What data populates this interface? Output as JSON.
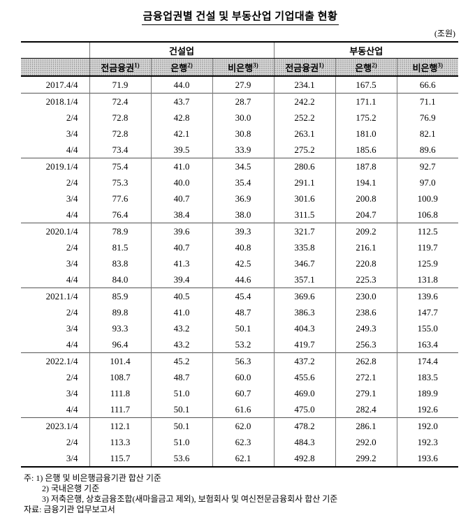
{
  "title": "금융업권별 건설 및 부동산업 기업대출 현황",
  "unit_label": "(조원)",
  "table": {
    "group_headers": [
      "건설업",
      "부동산업"
    ],
    "sub_headers": [
      {
        "label": "전금융권",
        "note": "1)"
      },
      {
        "label": "은행",
        "note": "2)"
      },
      {
        "label": "비은행",
        "note": "3)"
      }
    ],
    "rows": [
      {
        "label": "2017.4/4",
        "values": [
          71.9,
          44.0,
          27.9,
          234.1,
          167.5,
          66.6
        ]
      },
      {
        "label": "2018.1/4",
        "values": [
          72.4,
          43.7,
          28.7,
          242.2,
          171.1,
          71.1
        ]
      },
      {
        "label": "2/4",
        "values": [
          72.8,
          42.8,
          30.0,
          252.2,
          175.2,
          76.9
        ]
      },
      {
        "label": "3/4",
        "values": [
          72.8,
          42.1,
          30.8,
          263.1,
          181.0,
          82.1
        ]
      },
      {
        "label": "4/4",
        "values": [
          73.4,
          39.5,
          33.9,
          275.2,
          185.6,
          89.6
        ]
      },
      {
        "label": "2019.1/4",
        "values": [
          75.4,
          41.0,
          34.5,
          280.6,
          187.8,
          92.7
        ]
      },
      {
        "label": "2/4",
        "values": [
          75.3,
          40.0,
          35.4,
          291.1,
          194.1,
          97.0
        ]
      },
      {
        "label": "3/4",
        "values": [
          77.6,
          40.7,
          36.9,
          301.6,
          200.8,
          100.9
        ]
      },
      {
        "label": "4/4",
        "values": [
          76.4,
          38.4,
          38.0,
          311.5,
          204.7,
          106.8
        ]
      },
      {
        "label": "2020.1/4",
        "values": [
          78.9,
          39.6,
          39.3,
          321.7,
          209.2,
          112.5
        ]
      },
      {
        "label": "2/4",
        "values": [
          81.5,
          40.7,
          40.8,
          335.8,
          216.1,
          119.7
        ]
      },
      {
        "label": "3/4",
        "values": [
          83.8,
          41.3,
          42.5,
          346.7,
          220.8,
          125.9
        ]
      },
      {
        "label": "4/4",
        "values": [
          84.0,
          39.4,
          44.6,
          357.1,
          225.3,
          131.8
        ]
      },
      {
        "label": "2021.1/4",
        "values": [
          85.9,
          40.5,
          45.4,
          369.6,
          230.0,
          139.6
        ]
      },
      {
        "label": "2/4",
        "values": [
          89.8,
          41.0,
          48.7,
          386.3,
          238.6,
          147.7
        ]
      },
      {
        "label": "3/4",
        "values": [
          93.3,
          43.2,
          50.1,
          404.3,
          249.3,
          155.0
        ]
      },
      {
        "label": "4/4",
        "values": [
          96.4,
          43.2,
          53.2,
          419.7,
          256.3,
          163.4
        ]
      },
      {
        "label": "2022.1/4",
        "values": [
          101.4,
          45.2,
          56.3,
          437.2,
          262.8,
          174.4
        ]
      },
      {
        "label": "2/4",
        "values": [
          108.7,
          48.7,
          60.0,
          455.6,
          272.1,
          183.5
        ]
      },
      {
        "label": "3/4",
        "values": [
          111.8,
          51.0,
          60.7,
          469.0,
          279.1,
          189.9
        ]
      },
      {
        "label": "4/4",
        "values": [
          111.7,
          50.1,
          61.6,
          475.0,
          282.4,
          192.6
        ]
      },
      {
        "label": "2023.1/4",
        "values": [
          112.1,
          50.1,
          62.0,
          478.2,
          286.1,
          192.0
        ]
      },
      {
        "label": "2/4",
        "values": [
          113.3,
          51.0,
          62.3,
          484.3,
          292.0,
          192.3
        ]
      },
      {
        "label": "3/4",
        "values": [
          115.7,
          53.6,
          62.1,
          492.8,
          299.2,
          193.6
        ]
      }
    ]
  },
  "footnotes": [
    "주: 1) 은행 및 비은행금융기관 합산 기준",
    "2) 국내은행 기준",
    "3) 저축은행, 상호금융조합(새마을금고 제외), 보험회사 및 여신전문금융회사 합산 기준",
    "자료: 금융기관 업무보고서"
  ]
}
